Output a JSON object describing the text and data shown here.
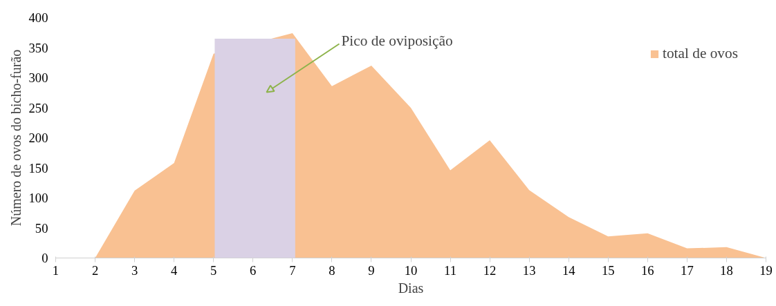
{
  "chart_data": {
    "type": "area",
    "xlabel": "Dias",
    "ylabel": "Número de ovos do bicho-furão",
    "x": [
      2,
      3,
      4,
      5,
      6,
      7,
      8,
      9,
      10,
      11,
      12,
      13,
      14,
      15,
      16,
      17,
      18,
      19
    ],
    "series": [
      {
        "name": "total de ovos",
        "color": "#f9c192",
        "values": [
          0,
          112,
          158,
          340,
          null,
          374,
          286,
          320,
          250,
          146,
          196,
          113,
          68,
          36,
          41,
          16,
          18,
          0
        ]
      }
    ],
    "xlim": [
      1,
      19
    ],
    "xticks": [
      1,
      2,
      3,
      4,
      5,
      6,
      7,
      8,
      9,
      10,
      11,
      12,
      13,
      14,
      15,
      16,
      17,
      18,
      19
    ],
    "ylim": [
      0,
      400
    ],
    "yticks": [
      0,
      50,
      100,
      150,
      200,
      250,
      300,
      350,
      400
    ],
    "bands": [
      {
        "axis": "x",
        "from": 5.03,
        "to": 7.07,
        "color": "#dad1e5"
      }
    ],
    "annotations": [
      "Pico de oviposição"
    ],
    "grid": false,
    "legend": "top right"
  }
}
